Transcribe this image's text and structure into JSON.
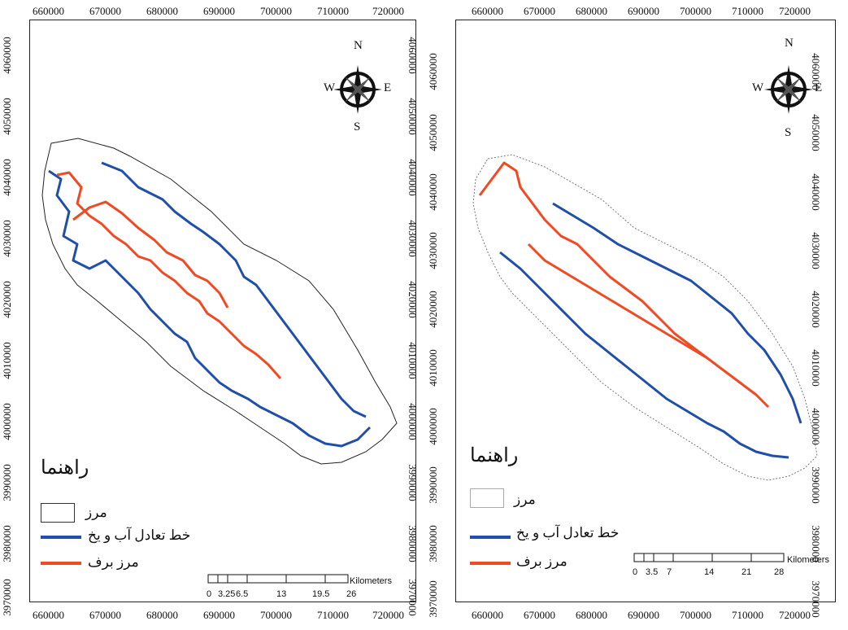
{
  "panels": [
    {
      "x_ticks": [
        "660000",
        "670000",
        "680000",
        "690000",
        "700000",
        "710000",
        "720000"
      ],
      "y_ticks": [
        "4060000",
        "4050000",
        "4040000",
        "4030000",
        "4020000",
        "4010000",
        "4000000",
        "3990000",
        "3980000",
        "3970000"
      ],
      "compass": {
        "N": "N",
        "S": "S",
        "E": "E",
        "W": "W"
      },
      "legend": {
        "title": "راهنما",
        "items": [
          {
            "label": "مرز",
            "type": "box"
          },
          {
            "label": "خط تعادل آب و یخ",
            "type": "line",
            "color": "#1f4fa8"
          },
          {
            "label": "مرز برف",
            "type": "line",
            "color": "#f04a23"
          }
        ]
      },
      "scale": {
        "ticks": [
          "0",
          "3.25",
          "6.5",
          "13",
          "19.5",
          "26"
        ],
        "unit": "Kilometers"
      }
    },
    {
      "x_ticks": [
        "660000",
        "670000",
        "680000",
        "690000",
        "700000",
        "710000",
        "720000"
      ],
      "y_ticks": [
        "4060000",
        "4050000",
        "4040000",
        "4030000",
        "4020000",
        "4010000",
        "4000000",
        "3990000",
        "3980000",
        "3970000"
      ],
      "compass": {
        "N": "N",
        "S": "S",
        "E": "E",
        "W": "W"
      },
      "legend": {
        "title": "راهنما",
        "items": [
          {
            "label": "مرز",
            "type": "box"
          },
          {
            "label": "خط تعادل آب و یخ",
            "type": "line",
            "color": "#1f4fa8"
          },
          {
            "label": "مرز برف",
            "type": "line",
            "color": "#f04a23"
          }
        ]
      },
      "scale": {
        "ticks": [
          "0",
          "3.5",
          "7",
          "14",
          "21",
          "28"
        ],
        "unit": "Kilometers"
      }
    }
  ],
  "colors": {
    "ela": "#1f4fa8",
    "snow": "#f04a23",
    "boundary": "#222222"
  }
}
